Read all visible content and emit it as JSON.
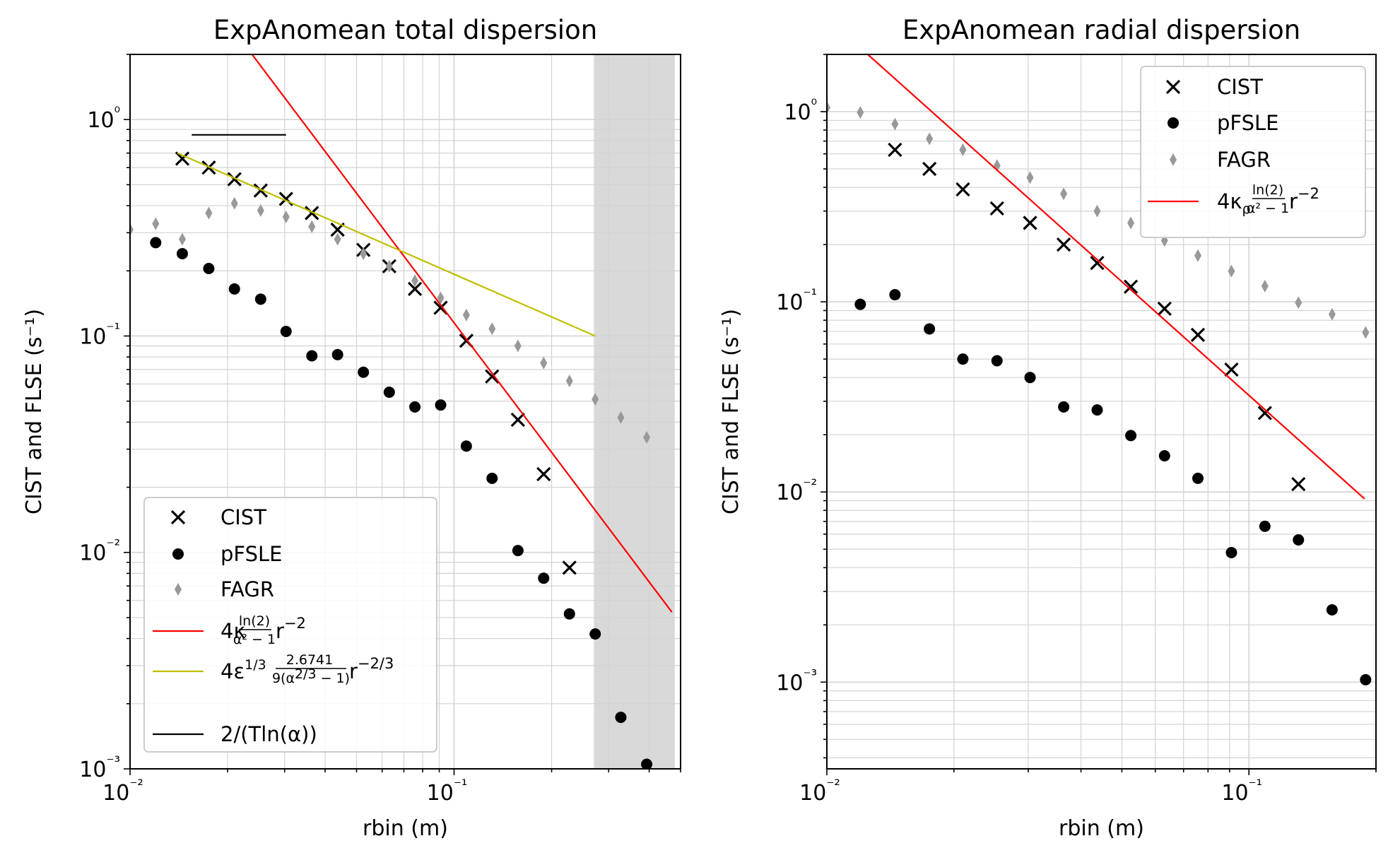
{
  "chart_data": [
    {
      "type": "scatter",
      "title": "ExpAnomean total dispersion",
      "xlabel": "rbin (m)",
      "ylabel": "CIST and FLSE (s⁻¹)",
      "xscale": "log",
      "yscale": "log",
      "xlim": [
        0.01,
        0.5
      ],
      "ylim": [
        0.001,
        2.0
      ],
      "x_ticks": [
        "10⁻²",
        "10⁻¹"
      ],
      "y_ticks": [
        "10⁻³",
        "10⁻²",
        "10⁻¹",
        "10⁰"
      ],
      "grid": true,
      "legend_position": "lower-left",
      "shaded_x_range": [
        0.27,
        0.48
      ],
      "series": [
        {
          "name": "CIST",
          "marker": "x",
          "color": "#000000",
          "x": [
            0.0145,
            0.0175,
            0.021,
            0.0253,
            0.0303,
            0.0364,
            0.0437,
            0.0525,
            0.0631,
            0.0757,
            0.0909,
            0.1091,
            0.131,
            0.1574,
            0.189,
            0.227
          ],
          "y": [
            0.66,
            0.6,
            0.53,
            0.47,
            0.43,
            0.37,
            0.31,
            0.25,
            0.21,
            0.165,
            0.135,
            0.095,
            0.065,
            0.041,
            0.023,
            0.0085
          ]
        },
        {
          "name": "pFSLE",
          "marker": "circle",
          "color": "#000000",
          "x": [
            0.012,
            0.0145,
            0.0175,
            0.021,
            0.0253,
            0.0303,
            0.0364,
            0.0437,
            0.0525,
            0.0631,
            0.0757,
            0.0909,
            0.1091,
            0.131,
            0.1574,
            0.189,
            0.227,
            0.2726,
            0.327,
            0.393
          ],
          "y": [
            0.27,
            0.24,
            0.205,
            0.165,
            0.148,
            0.105,
            0.081,
            0.082,
            0.068,
            0.055,
            0.047,
            0.048,
            0.031,
            0.022,
            0.0102,
            0.0076,
            0.0052,
            0.0042,
            0.00173,
            0.00105
          ]
        },
        {
          "name": "FAGR",
          "marker": "diamond",
          "color": "#999999",
          "x": [
            0.01,
            0.012,
            0.0145,
            0.0175,
            0.021,
            0.0253,
            0.0303,
            0.0364,
            0.0437,
            0.0525,
            0.0631,
            0.0757,
            0.0909,
            0.1091,
            0.131,
            0.1574,
            0.189,
            0.227,
            0.2726,
            0.327,
            0.393
          ],
          "y": [
            0.31,
            0.33,
            0.28,
            0.37,
            0.41,
            0.38,
            0.355,
            0.32,
            0.28,
            0.24,
            0.21,
            0.18,
            0.15,
            0.125,
            0.108,
            0.09,
            0.075,
            0.062,
            0.051,
            0.042,
            0.034
          ]
        },
        {
          "name": "4κ ln(2)/(α² − 1) r⁻²",
          "type": "line",
          "color": "#ff0000",
          "x": [
            0.0238,
            0.47
          ],
          "y": [
            2.0,
            0.0053
          ]
        },
        {
          "name": "4ε^1/3 2.6741/(9(α^2/3 − 1)) r^−2/3",
          "type": "line",
          "color": "#bfbf00",
          "x": [
            0.014,
            0.2726
          ],
          "y": [
            0.7,
            0.1
          ]
        },
        {
          "name": "2/(T ln(α))",
          "type": "line",
          "color": "#000000",
          "x": [
            0.0155,
            0.0303
          ],
          "y": [
            0.85,
            0.85
          ]
        }
      ]
    },
    {
      "type": "scatter",
      "title": "ExpAnomean radial dispersion",
      "xlabel": "rbin (m)",
      "ylabel": "CIST and FLSE (s⁻¹)",
      "xscale": "log",
      "yscale": "log",
      "xlim": [
        0.01,
        0.2
      ],
      "ylim": [
        0.00035,
        2.0
      ],
      "x_ticks": [
        "10⁻²",
        "10⁻¹"
      ],
      "y_ticks": [
        "10⁻³",
        "10⁻²",
        "10⁻¹",
        "10⁰"
      ],
      "grid": true,
      "legend_position": "upper-right",
      "series": [
        {
          "name": "CIST",
          "marker": "x",
          "color": "#000000",
          "x": [
            0.0145,
            0.0175,
            0.021,
            0.0253,
            0.0303,
            0.0364,
            0.0437,
            0.0525,
            0.0631,
            0.0757,
            0.0909,
            0.1091,
            0.131
          ],
          "y": [
            0.63,
            0.5,
            0.39,
            0.31,
            0.26,
            0.2,
            0.16,
            0.12,
            0.092,
            0.067,
            0.044,
            0.026,
            0.011
          ]
        },
        {
          "name": "pFSLE",
          "marker": "circle",
          "color": "#000000",
          "x": [
            0.012,
            0.0145,
            0.0175,
            0.021,
            0.0253,
            0.0303,
            0.0364,
            0.0437,
            0.0525,
            0.0631,
            0.0757,
            0.0909,
            0.1091,
            0.131,
            0.1574,
            0.189
          ],
          "y": [
            0.097,
            0.109,
            0.072,
            0.05,
            0.049,
            0.04,
            0.028,
            0.027,
            0.0198,
            0.0155,
            0.0118,
            0.0048,
            0.0066,
            0.0056,
            0.0024,
            0.00103
          ]
        },
        {
          "name": "FAGR",
          "marker": "diamond",
          "color": "#999999",
          "x": [
            0.01,
            0.012,
            0.0145,
            0.0175,
            0.021,
            0.0253,
            0.0303,
            0.0364,
            0.0437,
            0.0525,
            0.0631,
            0.0757,
            0.0909,
            0.1091,
            0.131,
            0.1574,
            0.189
          ],
          "y": [
            1.05,
            0.99,
            0.86,
            0.72,
            0.63,
            0.52,
            0.45,
            0.37,
            0.3,
            0.26,
            0.21,
            0.175,
            0.145,
            0.121,
            0.099,
            0.086,
            0.069
          ]
        },
        {
          "name": "4κρ ln(2)/(α² − 1) r⁻²",
          "type": "line",
          "color": "#ff0000",
          "x": [
            0.0125,
            0.188
          ],
          "y": [
            2.0,
            0.0092
          ]
        }
      ]
    }
  ]
}
